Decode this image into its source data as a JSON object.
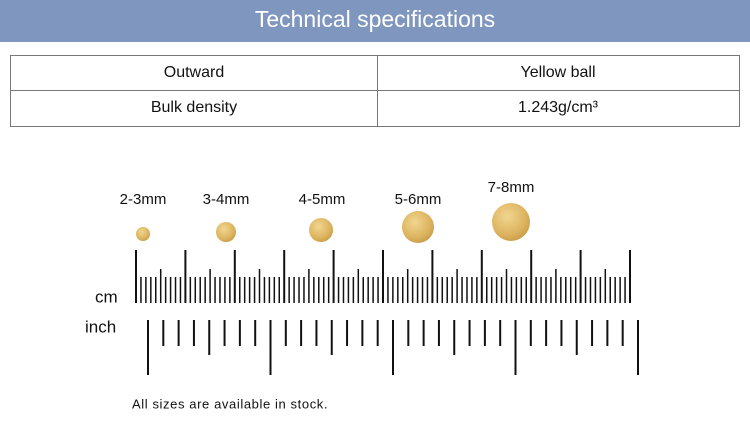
{
  "header": {
    "title": "Technical specifications"
  },
  "table": {
    "rows": [
      [
        "Outward",
        "Yellow ball"
      ],
      [
        "Bulk density",
        "1.243g/cm³"
      ]
    ]
  },
  "sizes": [
    "2-3mm",
    "3-4mm",
    "4-5mm",
    "5-6mm",
    "7-8mm"
  ],
  "ruler": {
    "cm_label": "cm",
    "inch_label": "inch"
  },
  "note": "All sizes are available in stock."
}
